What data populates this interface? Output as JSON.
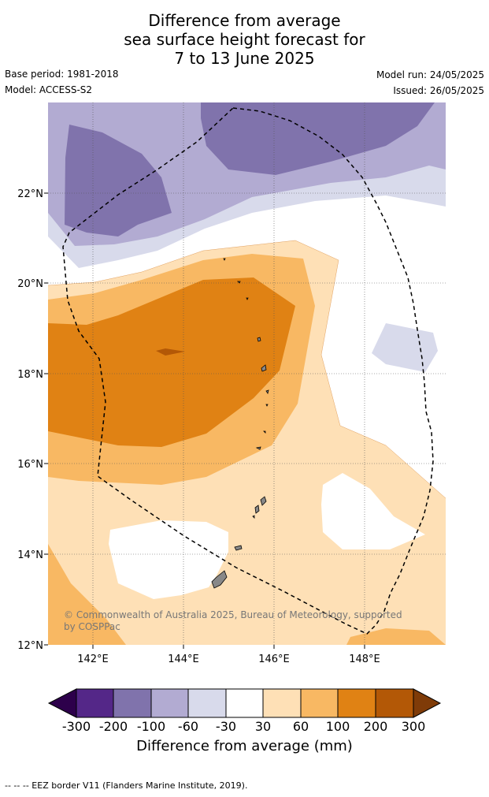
{
  "title": {
    "line1": "Difference from average",
    "line2": "sea surface height forecast for",
    "line3": "7 to 13 June 2025"
  },
  "meta": {
    "base_period": "Base period: 1981-2018",
    "model": "Model: ACCESS-S2",
    "model_run": "Model run: 24/05/2025",
    "issued": "Issued: 26/05/2025"
  },
  "map": {
    "lat_labels": [
      "22°N",
      "20°N",
      "18°N",
      "16°N",
      "14°N",
      "12°N"
    ],
    "lon_labels": [
      "142°E",
      "144°E",
      "146°E",
      "148°E"
    ],
    "copyright_line1": "© Commonwealth of Australia 2025, Bureau of Meteorology, supported",
    "copyright_line2": "by COSPPac",
    "colors": {
      "m300": "#2d004b",
      "m200": "#542788",
      "m100": "#8073ac",
      "m60": "#b2abd2",
      "m30": "#d8daeb",
      "zero": "#ffffff",
      "p30": "#fee0b6",
      "p60": "#f8b863",
      "p100": "#e08214",
      "p200": "#b35806",
      "p300": "#7f3b08"
    }
  },
  "colorbar": {
    "labels": [
      "-300",
      "-200",
      "-100",
      "-60",
      "-30",
      "30",
      "60",
      "100",
      "200",
      "300"
    ],
    "title": "Difference from average (mm)"
  },
  "footer": "--  --  -- EEZ border V11 (Flanders Marine Institute, 2019)."
}
